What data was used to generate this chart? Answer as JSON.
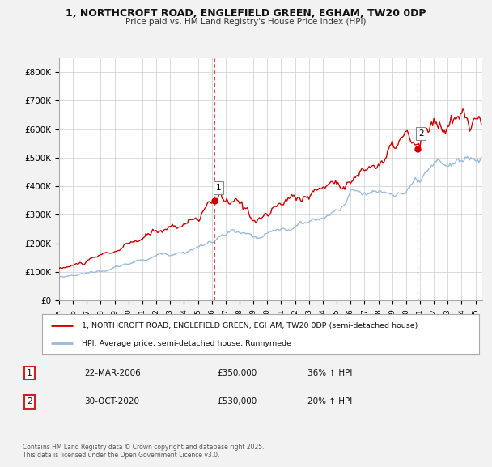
{
  "title": "1, NORTHCROFT ROAD, ENGLEFIELD GREEN, EGHAM, TW20 0DP",
  "subtitle": "Price paid vs. HM Land Registry's House Price Index (HPI)",
  "bg_color": "#f2f2f2",
  "plot_bg_color": "#ffffff",
  "red_color": "#cc0000",
  "blue_color": "#99bbdd",
  "grid_color": "#cccccc",
  "xmin": 1995,
  "xmax": 2025.5,
  "ymin": 0,
  "ymax": 850000,
  "yticks": [
    0,
    100000,
    200000,
    300000,
    400000,
    500000,
    600000,
    700000,
    800000
  ],
  "ytick_labels": [
    "£0",
    "£100K",
    "£200K",
    "£300K",
    "£400K",
    "£500K",
    "£600K",
    "£700K",
    "£800K"
  ],
  "marker1_x": 2006.22,
  "marker1_y": 350000,
  "marker1_label": "1",
  "marker2_x": 2020.83,
  "marker2_y": 530000,
  "marker2_label": "2",
  "vline1_x": 2006.22,
  "vline2_x": 2020.83,
  "legend_red_label": "1, NORTHCROFT ROAD, ENGLEFIELD GREEN, EGHAM, TW20 0DP (semi-detached house)",
  "legend_blue_label": "HPI: Average price, semi-detached house, Runnymede",
  "table_row1": [
    "1",
    "22-MAR-2006",
    "£350,000",
    "36% ↑ HPI"
  ],
  "table_row2": [
    "2",
    "30-OCT-2020",
    "£530,000",
    "20% ↑ HPI"
  ],
  "footer": "Contains HM Land Registry data © Crown copyright and database right 2025.\nThis data is licensed under the Open Government Licence v3.0."
}
